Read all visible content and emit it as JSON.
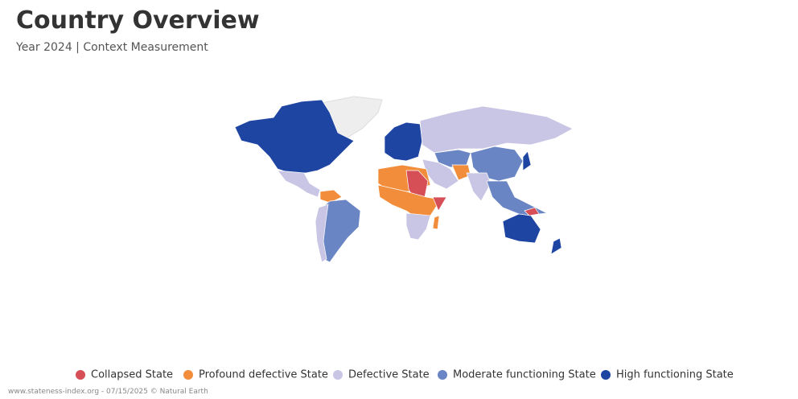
{
  "header": {
    "title": "Country Overview",
    "subtitle": "Year 2024 | Context Measurement"
  },
  "legend": [
    {
      "label": "Collapsed State",
      "color": "#d64f57"
    },
    {
      "label": "Profound defective State",
      "color": "#f28e3b"
    },
    {
      "label": "Defective State",
      "color": "#c8c6e4"
    },
    {
      "label": "Moderate functioning State",
      "color": "#6a85c4"
    },
    {
      "label": "High functioning State",
      "color": "#1f45a3"
    }
  ],
  "footer": "www.stateness-index.org - 07/15/2025 © Natural Earth"
}
